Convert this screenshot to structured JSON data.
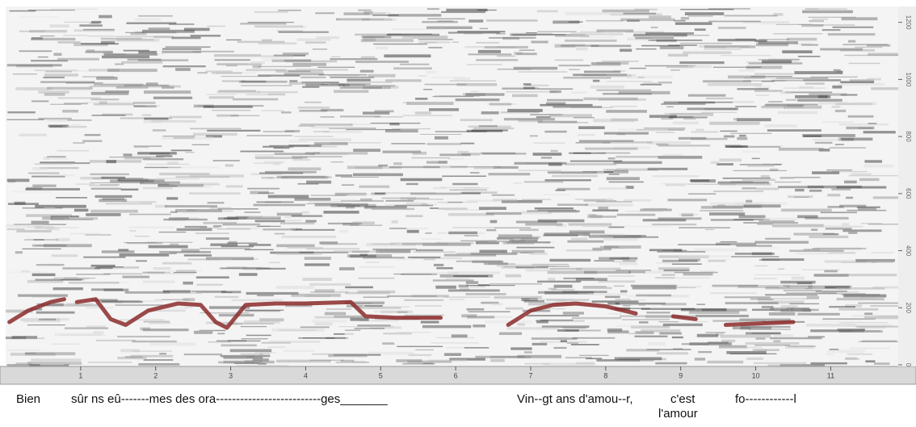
{
  "chart_data": {
    "type": "spectrogram",
    "xlim": [
      0,
      11.9
    ],
    "xticks": [
      1,
      2,
      3,
      4,
      5,
      6,
      7,
      8,
      9,
      10,
      11
    ],
    "ylim": [
      0,
      1250
    ],
    "yticks": [
      0,
      200,
      400,
      600,
      800,
      1000,
      1200
    ],
    "pitch": {
      "color": "#8b2a2a",
      "x": [
        0.05,
        0.3,
        0.6,
        0.78,
        null,
        0.95,
        1.2,
        1.4,
        1.6,
        1.9,
        2.3,
        2.6,
        2.8,
        2.95,
        3.2,
        3.6,
        4.0,
        4.6,
        4.8,
        5.2,
        5.8,
        null,
        6.7,
        7.0,
        7.3,
        7.6,
        8.0,
        8.4,
        null,
        8.9,
        9.2,
        null,
        9.6,
        10.5
      ],
      "values": [
        150,
        190,
        220,
        230,
        null,
        220,
        230,
        160,
        140,
        190,
        215,
        210,
        150,
        130,
        210,
        215,
        215,
        220,
        170,
        165,
        165,
        null,
        140,
        190,
        210,
        215,
        205,
        180,
        null,
        170,
        160,
        null,
        140,
        150
      ]
    },
    "lyrics": [
      "Bien",
      "sûr ns eû-------mes des ora--------------------------ges_______",
      "Vin--gt ans d'amou--r,",
      "c'est",
      "l'amour",
      "fo------------l"
    ]
  }
}
